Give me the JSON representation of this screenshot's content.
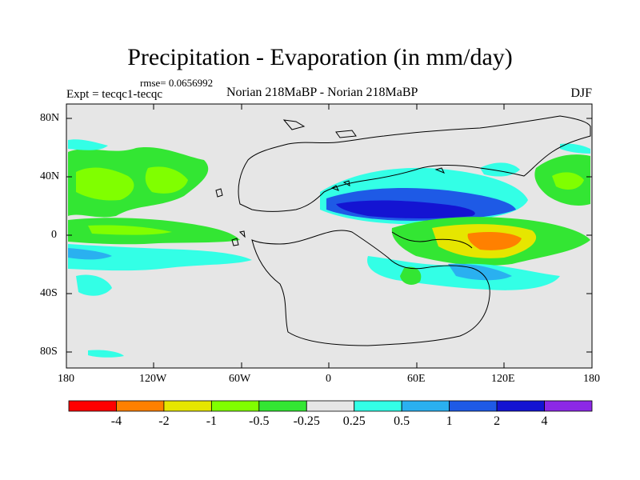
{
  "title": "Precipitation - Evaporation (in mm/day)",
  "rmse": "rmse= 0.0656992",
  "expt": "Expt = tecqc1-tecqc",
  "runs": "Norian 218MaBP - Norian 218MaBP",
  "season": "DJF",
  "colors": {
    "background_field": "#e6e6e6",
    "frame": "#000000",
    "coast": "#000000"
  },
  "y_ticks": [
    "80N",
    "40N",
    "0",
    "40S",
    "80S"
  ],
  "x_ticks": [
    "180",
    "120W",
    "60W",
    "0",
    "60E",
    "120E",
    "180"
  ],
  "colorbar": {
    "colors": [
      "#ff0000",
      "#ff8000",
      "#e6e600",
      "#80ff00",
      "#33e633",
      "#e6e6e6",
      "#33ffe6",
      "#2ab0f0",
      "#1e5ae6",
      "#1414d2",
      "#8c28e6"
    ],
    "labels": [
      "-4",
      "-2",
      "-1",
      "-0.5",
      "-0.25",
      "0.25",
      "0.5",
      "1",
      "2",
      "4"
    ]
  }
}
